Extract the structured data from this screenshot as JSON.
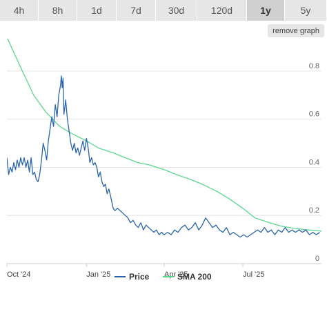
{
  "tabs": [
    {
      "label": "4h",
      "active": false
    },
    {
      "label": "8h",
      "active": false
    },
    {
      "label": "1d",
      "active": false
    },
    {
      "label": "7d",
      "active": false
    },
    {
      "label": "30d",
      "active": false
    },
    {
      "label": "120d",
      "active": false
    },
    {
      "label": "1y",
      "active": true
    },
    {
      "label": "5y",
      "active": false
    }
  ],
  "remove_graph_label": "remove graph",
  "chart_data": {
    "type": "line",
    "x_ticks": [
      "Oct '24",
      "Jan '25",
      "Apr '25",
      "Jul '25"
    ],
    "x_tick_dates": [
      "2024-10-01",
      "2025-01-01",
      "2025-04-01",
      "2025-07-01"
    ],
    "x_range": [
      "2024-10-01",
      "2025-09-30"
    ],
    "y_ticks": [
      0,
      0.2,
      0.4,
      0.6,
      0.8
    ],
    "ylim": [
      0,
      0.9
    ],
    "grid": true,
    "legend_position": "bottom",
    "series": [
      {
        "name": "Price",
        "color": "#2a64a8",
        "points": [
          [
            "2024-10-01",
            0.44
          ],
          [
            "2024-10-03",
            0.37
          ],
          [
            "2024-10-05",
            0.4
          ],
          [
            "2024-10-07",
            0.38
          ],
          [
            "2024-10-09",
            0.42
          ],
          [
            "2024-10-11",
            0.39
          ],
          [
            "2024-10-13",
            0.43
          ],
          [
            "2024-10-15",
            0.4
          ],
          [
            "2024-10-17",
            0.44
          ],
          [
            "2024-10-19",
            0.41
          ],
          [
            "2024-10-21",
            0.44
          ],
          [
            "2024-10-23",
            0.4
          ],
          [
            "2024-10-25",
            0.43
          ],
          [
            "2024-10-27",
            0.38
          ],
          [
            "2024-10-29",
            0.44
          ],
          [
            "2024-10-31",
            0.37
          ],
          [
            "2024-11-02",
            0.38
          ],
          [
            "2024-11-04",
            0.35
          ],
          [
            "2024-11-06",
            0.34
          ],
          [
            "2024-11-08",
            0.37
          ],
          [
            "2024-11-10",
            0.43
          ],
          [
            "2024-11-12",
            0.5
          ],
          [
            "2024-11-14",
            0.47
          ],
          [
            "2024-11-16",
            0.43
          ],
          [
            "2024-11-18",
            0.51
          ],
          [
            "2024-11-20",
            0.56
          ],
          [
            "2024-11-22",
            0.61
          ],
          [
            "2024-11-24",
            0.57
          ],
          [
            "2024-11-26",
            0.66
          ],
          [
            "2024-11-28",
            0.61
          ],
          [
            "2024-11-30",
            0.7
          ],
          [
            "2024-12-02",
            0.74
          ],
          [
            "2024-12-03",
            0.78
          ],
          [
            "2024-12-04",
            0.73
          ],
          [
            "2024-12-05",
            0.77
          ],
          [
            "2024-12-06",
            0.62
          ],
          [
            "2024-12-08",
            0.68
          ],
          [
            "2024-12-10",
            0.6
          ],
          [
            "2024-12-12",
            0.55
          ],
          [
            "2024-12-14",
            0.5
          ],
          [
            "2024-12-16",
            0.47
          ],
          [
            "2024-12-18",
            0.5
          ],
          [
            "2024-12-20",
            0.46
          ],
          [
            "2024-12-22",
            0.48
          ],
          [
            "2024-12-24",
            0.45
          ],
          [
            "2024-12-26",
            0.48
          ],
          [
            "2024-12-28",
            0.51
          ],
          [
            "2024-12-30",
            0.47
          ],
          [
            "2025-01-01",
            0.52
          ],
          [
            "2025-01-03",
            0.48
          ],
          [
            "2025-01-05",
            0.42
          ],
          [
            "2025-01-07",
            0.44
          ],
          [
            "2025-01-09",
            0.41
          ],
          [
            "2025-01-11",
            0.42
          ],
          [
            "2025-01-13",
            0.4
          ],
          [
            "2025-01-15",
            0.36
          ],
          [
            "2025-01-17",
            0.38
          ],
          [
            "2025-01-19",
            0.34
          ],
          [
            "2025-01-21",
            0.32
          ],
          [
            "2025-01-23",
            0.33
          ],
          [
            "2025-01-25",
            0.29
          ],
          [
            "2025-01-27",
            0.31
          ],
          [
            "2025-01-29",
            0.28
          ],
          [
            "2025-02-01",
            0.23
          ],
          [
            "2025-02-03",
            0.22
          ],
          [
            "2025-02-06",
            0.23
          ],
          [
            "2025-02-09",
            0.22
          ],
          [
            "2025-02-12",
            0.21
          ],
          [
            "2025-02-15",
            0.2
          ],
          [
            "2025-02-18",
            0.19
          ],
          [
            "2025-02-21",
            0.17
          ],
          [
            "2025-02-24",
            0.18
          ],
          [
            "2025-02-27",
            0.16
          ],
          [
            "2025-03-02",
            0.15
          ],
          [
            "2025-03-05",
            0.17
          ],
          [
            "2025-03-08",
            0.14
          ],
          [
            "2025-03-11",
            0.16
          ],
          [
            "2025-03-14",
            0.15
          ],
          [
            "2025-03-17",
            0.14
          ],
          [
            "2025-03-20",
            0.13
          ],
          [
            "2025-03-23",
            0.14
          ],
          [
            "2025-03-26",
            0.12
          ],
          [
            "2025-03-29",
            0.13
          ],
          [
            "2025-04-01",
            0.12
          ],
          [
            "2025-04-05",
            0.13
          ],
          [
            "2025-04-09",
            0.12
          ],
          [
            "2025-04-13",
            0.14
          ],
          [
            "2025-04-17",
            0.13
          ],
          [
            "2025-04-21",
            0.15
          ],
          [
            "2025-04-25",
            0.16
          ],
          [
            "2025-04-29",
            0.14
          ],
          [
            "2025-05-03",
            0.15
          ],
          [
            "2025-05-07",
            0.17
          ],
          [
            "2025-05-11",
            0.14
          ],
          [
            "2025-05-15",
            0.16
          ],
          [
            "2025-05-19",
            0.19
          ],
          [
            "2025-05-23",
            0.17
          ],
          [
            "2025-05-27",
            0.15
          ],
          [
            "2025-05-31",
            0.16
          ],
          [
            "2025-06-04",
            0.14
          ],
          [
            "2025-06-08",
            0.13
          ],
          [
            "2025-06-12",
            0.15
          ],
          [
            "2025-06-16",
            0.12
          ],
          [
            "2025-06-20",
            0.13
          ],
          [
            "2025-06-24",
            0.12
          ],
          [
            "2025-06-28",
            0.11
          ],
          [
            "2025-07-02",
            0.12
          ],
          [
            "2025-07-06",
            0.11
          ],
          [
            "2025-07-10",
            0.12
          ],
          [
            "2025-07-14",
            0.13
          ],
          [
            "2025-07-18",
            0.14
          ],
          [
            "2025-07-22",
            0.13
          ],
          [
            "2025-07-26",
            0.15
          ],
          [
            "2025-07-30",
            0.13
          ],
          [
            "2025-08-03",
            0.14
          ],
          [
            "2025-08-07",
            0.12
          ],
          [
            "2025-08-11",
            0.14
          ],
          [
            "2025-08-15",
            0.13
          ],
          [
            "2025-08-19",
            0.15
          ],
          [
            "2025-08-23",
            0.13
          ],
          [
            "2025-08-27",
            0.14
          ],
          [
            "2025-08-31",
            0.13
          ],
          [
            "2025-09-04",
            0.14
          ],
          [
            "2025-09-08",
            0.13
          ],
          [
            "2025-09-12",
            0.14
          ],
          [
            "2025-09-16",
            0.12
          ],
          [
            "2025-09-20",
            0.13
          ],
          [
            "2025-09-24",
            0.12
          ],
          [
            "2025-09-28",
            0.13
          ]
        ]
      },
      {
        "name": "SMA 200",
        "color": "#5cd68f",
        "points": [
          [
            "2024-10-01",
            0.94
          ],
          [
            "2024-10-15",
            0.83
          ],
          [
            "2024-11-01",
            0.7
          ],
          [
            "2024-11-15",
            0.63
          ],
          [
            "2024-12-01",
            0.57
          ],
          [
            "2024-12-15",
            0.54
          ],
          [
            "2025-01-01",
            0.51
          ],
          [
            "2025-01-15",
            0.48
          ],
          [
            "2025-02-01",
            0.46
          ],
          [
            "2025-02-15",
            0.44
          ],
          [
            "2025-03-01",
            0.42
          ],
          [
            "2025-03-15",
            0.41
          ],
          [
            "2025-04-01",
            0.39
          ],
          [
            "2025-04-15",
            0.37
          ],
          [
            "2025-05-01",
            0.35
          ],
          [
            "2025-05-15",
            0.33
          ],
          [
            "2025-06-01",
            0.3
          ],
          [
            "2025-06-15",
            0.27
          ],
          [
            "2025-07-01",
            0.23
          ],
          [
            "2025-07-15",
            0.19
          ],
          [
            "2025-08-01",
            0.17
          ],
          [
            "2025-08-15",
            0.155
          ],
          [
            "2025-09-01",
            0.145
          ],
          [
            "2025-09-15",
            0.14
          ],
          [
            "2025-09-30",
            0.135
          ]
        ]
      }
    ]
  }
}
